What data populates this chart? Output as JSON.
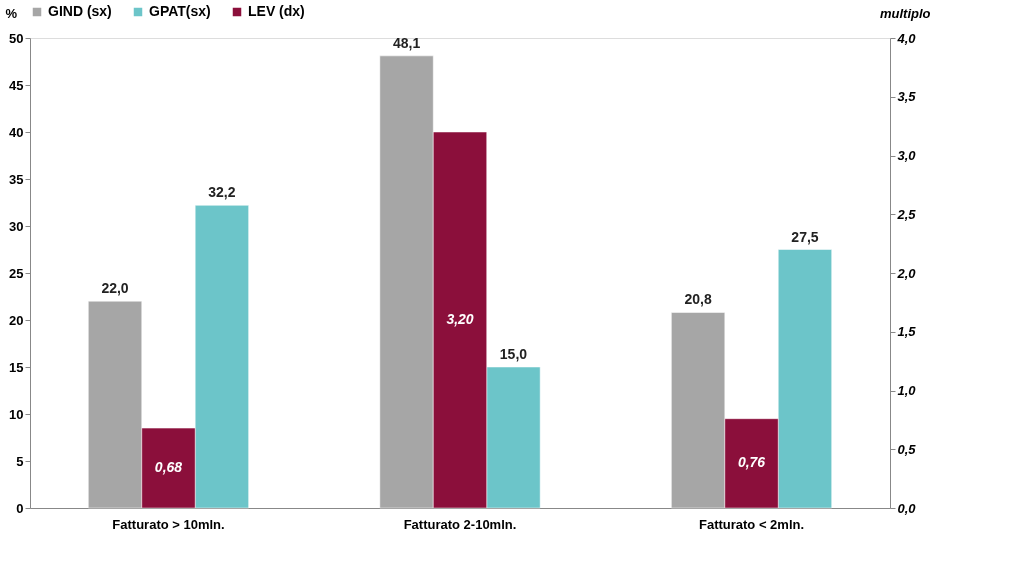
{
  "chart_data": {
    "type": "bar",
    "categories": [
      "Fatturato > 10mln.",
      "Fatturato 2-10mln.",
      "Fatturato < 2mln."
    ],
    "ylabel": "%",
    "y2label": "multiplo",
    "series": [
      {
        "name": "GIND (sx)",
        "color": "#a6a6a6",
        "values": [
          22.0,
          48.1,
          20.8
        ],
        "value_labels": [
          "22,0",
          "48,1",
          "20,8"
        ]
      },
      {
        "name": "GPAT(sx)",
        "color": "#6cc5c9",
        "values": [
          32.2,
          15.0,
          27.5
        ],
        "value_labels": [
          "32,2",
          "15,0",
          "27,5"
        ]
      },
      {
        "name": "LEV (dx)",
        "color": "#8b0f3b",
        "axis": "y2",
        "values": [
          0.68,
          3.2,
          0.76
        ],
        "value_labels": [
          "0,68",
          "3,20",
          "0,76"
        ]
      }
    ],
    "ylim": [
      0,
      50
    ],
    "yticks": [
      0,
      5,
      10,
      15,
      20,
      25,
      30,
      35,
      40,
      45,
      50
    ],
    "y2lim": [
      0,
      4
    ],
    "y2ticks": [
      {
        "value": 0,
        "label": "0,0"
      },
      {
        "value": 0.5,
        "label": "0,5"
      },
      {
        "value": 1,
        "label": "1,0"
      },
      {
        "value": 1.5,
        "label": "1,5"
      },
      {
        "value": 2,
        "label": "2,0"
      },
      {
        "value": 2.5,
        "label": "2,5"
      },
      {
        "value": 3,
        "label": "3,0"
      },
      {
        "value": 3.5,
        "label": "3,5"
      },
      {
        "value": 4,
        "label": "4,0"
      }
    ],
    "grid": false,
    "legend": "top"
  }
}
